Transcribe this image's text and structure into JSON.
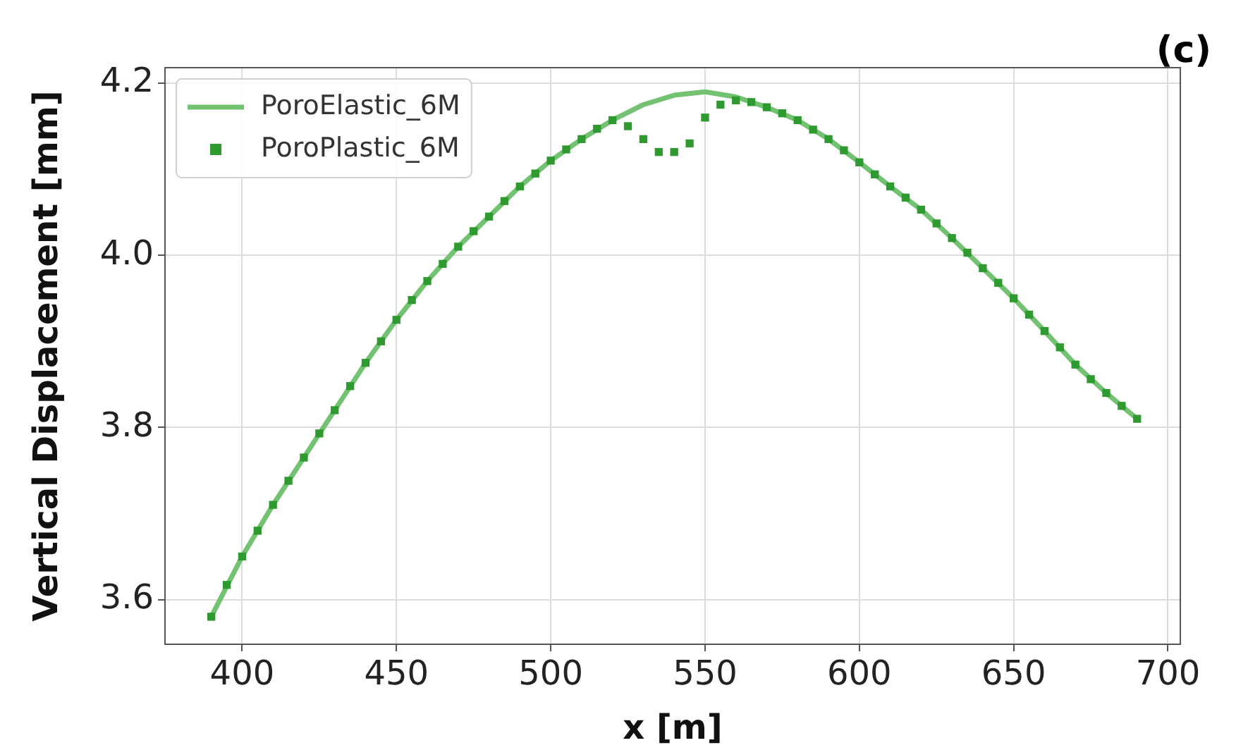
{
  "chart_data": {
    "type": "line",
    "xlabel": "x [m]",
    "ylabel": "Vertical Displacement [mm]",
    "annotations": [
      "(c)"
    ],
    "xlim": [
      375,
      704
    ],
    "xticks": [
      400,
      450,
      500,
      550,
      600,
      650,
      700
    ],
    "ylim": [
      3.548,
      4.218
    ],
    "yticks": [
      3.6,
      3.8,
      {
        "value": 4,
        "label": "4.0"
      },
      4.2
    ],
    "grid": true,
    "legend": "top left",
    "series": [
      {
        "name": "PoroElastic_6M",
        "color": "#72c272",
        "marker": "none",
        "line_style": "solid",
        "x": [
          390,
          400,
          410,
          420,
          430,
          440,
          450,
          460,
          470,
          480,
          490,
          500,
          510,
          520,
          530,
          540,
          550,
          560,
          570,
          580,
          590,
          600,
          610,
          620,
          630,
          640,
          650,
          660,
          670,
          680,
          690
        ],
        "values": [
          3.58,
          3.65,
          3.71,
          3.765,
          3.82,
          3.875,
          3.925,
          3.97,
          4.01,
          4.045,
          4.08,
          4.11,
          4.135,
          4.157,
          4.175,
          4.186,
          4.19,
          4.184,
          4.172,
          4.157,
          4.135,
          4.108,
          4.08,
          4.053,
          4.02,
          3.985,
          3.95,
          3.912,
          3.873,
          3.84,
          3.81
        ]
      },
      {
        "name": "PoroPlastic_6M",
        "type": "scatter",
        "color": "#2f9a2f",
        "marker": "square",
        "x": [
          390,
          395,
          400,
          405,
          410,
          415,
          420,
          425,
          430,
          435,
          440,
          445,
          450,
          455,
          460,
          465,
          470,
          475,
          480,
          485,
          490,
          495,
          500,
          505,
          510,
          515,
          520,
          525,
          530,
          535,
          540,
          545,
          550,
          555,
          560,
          565,
          570,
          575,
          580,
          585,
          590,
          595,
          600,
          605,
          610,
          615,
          620,
          625,
          630,
          635,
          640,
          645,
          650,
          655,
          660,
          665,
          670,
          675,
          680,
          685,
          690
        ],
        "values": [
          3.58,
          3.617,
          3.65,
          3.68,
          3.71,
          3.738,
          3.765,
          3.793,
          3.82,
          3.848,
          3.875,
          3.9,
          3.925,
          3.948,
          3.97,
          3.99,
          4.01,
          4.028,
          4.045,
          4.063,
          4.08,
          4.095,
          4.11,
          4.123,
          4.135,
          4.147,
          4.157,
          4.15,
          4.135,
          4.12,
          4.12,
          4.13,
          4.16,
          4.175,
          4.18,
          4.178,
          4.172,
          4.165,
          4.157,
          4.146,
          4.135,
          4.122,
          4.108,
          4.094,
          4.08,
          4.067,
          4.053,
          4.037,
          4.02,
          4.003,
          3.985,
          3.968,
          3.95,
          3.931,
          3.912,
          3.893,
          3.873,
          3.856,
          3.84,
          3.825,
          3.81
        ]
      }
    ]
  }
}
